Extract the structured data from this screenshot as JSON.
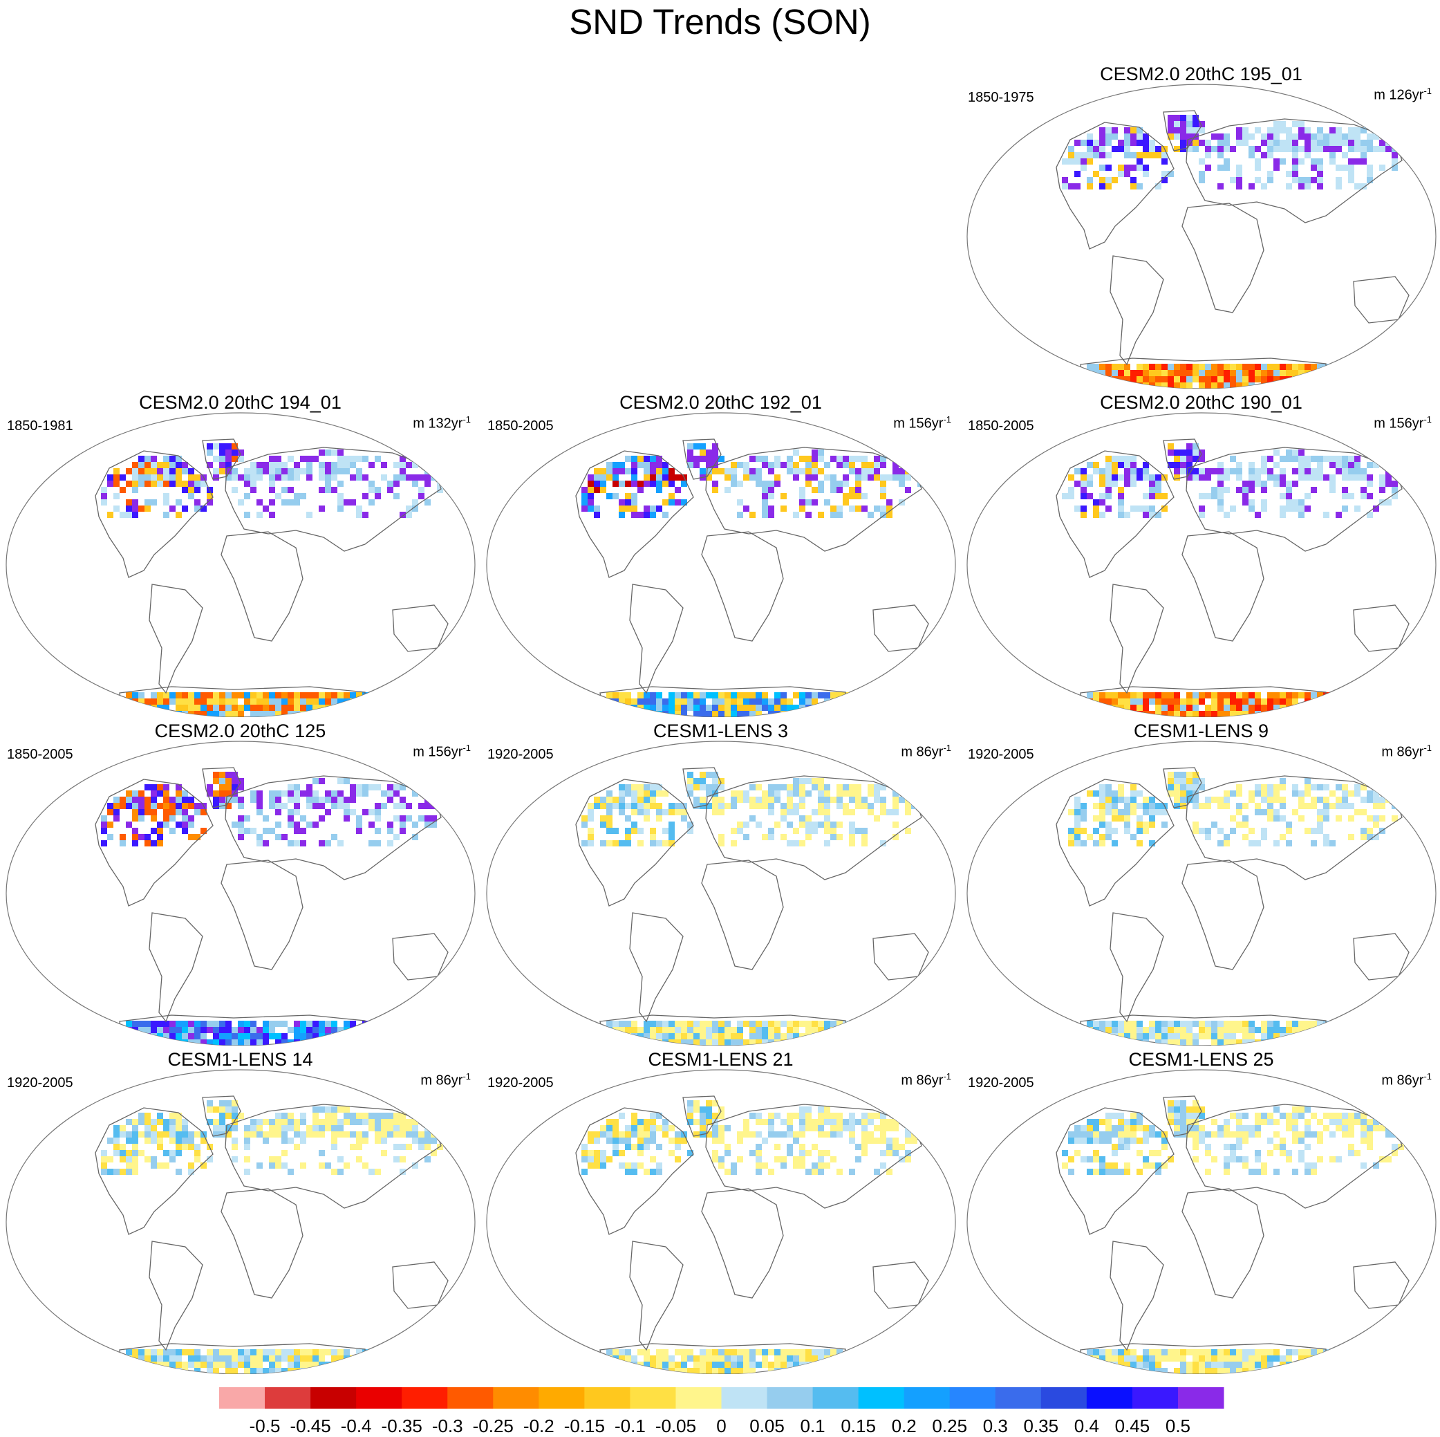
{
  "title": "SND Trends (SON)",
  "panels": [
    {
      "title": "CESM2.0 20thC 195_01",
      "period": "1850-1975",
      "mean": "m 126",
      "unit": "yr",
      "exp": "-1",
      "slot": 2,
      "sig": "cesm2a"
    },
    {
      "title": "CESM2.0 20thC 194_01",
      "period": "1850-1981",
      "mean": "m 132",
      "unit": "yr",
      "exp": "-1",
      "slot": 3,
      "sig": "cesm2b"
    },
    {
      "title": "CESM2.0 20thC 192_01",
      "period": "1850-2005",
      "mean": "m 156",
      "unit": "yr",
      "exp": "-1",
      "slot": 4,
      "sig": "cesm2c"
    },
    {
      "title": "CESM2.0 20thC 190_01",
      "period": "1850-2005",
      "mean": "m 156",
      "unit": "yr",
      "exp": "-1",
      "slot": 5,
      "sig": "cesm2a"
    },
    {
      "title": "CESM2.0 20thC 125",
      "period": "1850-2005",
      "mean": "m 156",
      "unit": "yr",
      "exp": "-1",
      "slot": 6,
      "sig": "cesm2d"
    },
    {
      "title": "CESM1-LENS 3",
      "period": "1920-2005",
      "mean": "m 86",
      "unit": "yr",
      "exp": "-1",
      "slot": 7,
      "sig": "lens"
    },
    {
      "title": "CESM1-LENS 9",
      "period": "1920-2005",
      "mean": "m 86",
      "unit": "yr",
      "exp": "-1",
      "slot": 8,
      "sig": "lens"
    },
    {
      "title": "CESM1-LENS 14",
      "period": "1920-2005",
      "mean": "m 86",
      "unit": "yr",
      "exp": "-1",
      "slot": 9,
      "sig": "lens"
    },
    {
      "title": "CESM1-LENS 21",
      "period": "1920-2005",
      "mean": "m 86",
      "unit": "yr",
      "exp": "-1",
      "slot": 10,
      "sig": "lens"
    },
    {
      "title": "CESM1-LENS 25",
      "period": "1920-2005",
      "mean": "m 86",
      "unit": "yr",
      "exp": "-1",
      "slot": 11,
      "sig": "lens"
    }
  ],
  "colorbar": {
    "labels": [
      "-0.5",
      "-0.45",
      "-0.4",
      "-0.35",
      "-0.3",
      "-0.25",
      "-0.2",
      "-0.15",
      "-0.1",
      "-0.05",
      "0",
      "0.05",
      "0.1",
      "0.15",
      "0.2",
      "0.25",
      "0.3",
      "0.35",
      "0.4",
      "0.45",
      "0.5"
    ],
    "colors": [
      "#f9a8a8",
      "#dd3c3c",
      "#c80000",
      "#ea0000",
      "#ff1e00",
      "#ff5a00",
      "#ff8c00",
      "#ffaa00",
      "#ffc81e",
      "#ffe044",
      "#fff58c",
      "#bfe3f5",
      "#96cdee",
      "#55bcf0",
      "#00c0ff",
      "#14a0ff",
      "#2686ff",
      "#3a6cec",
      "#2a4ae0",
      "#0a10ff",
      "#3a18ff",
      "#8a2ae8"
    ]
  },
  "chart_data": {
    "type": "heatmap",
    "title": "SND Trends (SON)",
    "projection": "global world map (land areas colored)",
    "levels": [
      -0.5,
      -0.45,
      -0.4,
      -0.35,
      -0.3,
      -0.25,
      -0.2,
      -0.15,
      -0.1,
      -0.05,
      0,
      0.05,
      0.1,
      0.15,
      0.2,
      0.25,
      0.3,
      0.35,
      0.4,
      0.45,
      0.5
    ],
    "panels": [
      "CESM2.0 20thC 195_01",
      "CESM2.0 20thC 194_01",
      "CESM2.0 20thC 192_01",
      "CESM2.0 20thC 190_01",
      "CESM2.0 20thC 125",
      "CESM1-LENS 3",
      "CESM1-LENS 9",
      "CESM1-LENS 14",
      "CESM1-LENS 21",
      "CESM1-LENS 25"
    ],
    "layout": "4 rows x 3 columns, first row has only the right panel"
  }
}
